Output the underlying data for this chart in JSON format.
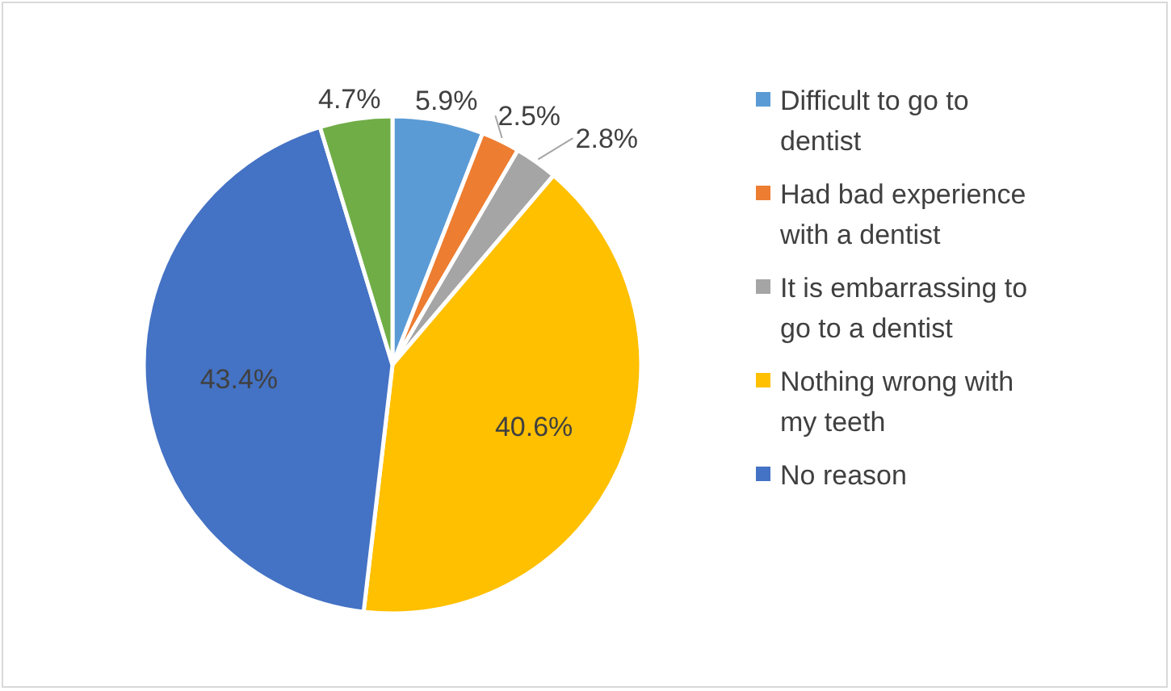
{
  "chart_data": {
    "type": "pie",
    "categories": [
      "Difficult to go to dentist",
      "Had bad experience with a dentist",
      "It is embarrassing to go to a dentist",
      "Nothing wrong with my teeth",
      "No reason",
      null
    ],
    "values": [
      5.9,
      2.5,
      2.8,
      40.6,
      43.4,
      4.7
    ],
    "colors": [
      "#5b9bd5",
      "#ed7d31",
      "#a5a5a5",
      "#ffc000",
      "#4472c4",
      "#70ad47"
    ],
    "value_labels": [
      "5.9%",
      "2.5%",
      "2.8%",
      "40.6%",
      "43.4%",
      "4.7%"
    ],
    "legend": "right"
  }
}
